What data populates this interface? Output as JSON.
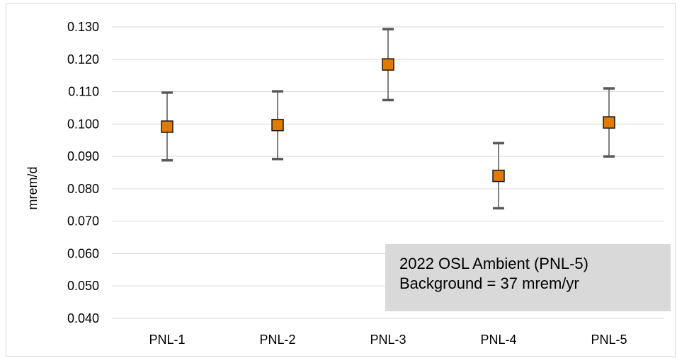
{
  "chart_data": {
    "type": "scatter",
    "ylabel": "mrem/d",
    "xlabel": "",
    "ylim": [
      0.04,
      0.13
    ],
    "y_ticks": [
      "0.040",
      "0.050",
      "0.060",
      "0.070",
      "0.080",
      "0.090",
      "0.100",
      "0.110",
      "0.120",
      "0.130"
    ],
    "grid": true,
    "categories": [
      "PNL-1",
      "PNL-2",
      "PNL-3",
      "PNL-4",
      "PNL-5"
    ],
    "values": [
      0.0992,
      0.0997,
      0.1184,
      0.084,
      0.1005
    ],
    "error_low": [
      0.0888,
      0.0892,
      0.1074,
      0.074,
      0.09
    ],
    "error_high": [
      0.1097,
      0.1101,
      0.1293,
      0.0941,
      0.111
    ],
    "marker": "square",
    "colors": {
      "marker_fill": "#e07b00",
      "marker_edge": "#1a1a1a",
      "error_bar": "#7f7f7f",
      "error_cap": "#595959",
      "grid": "#d9d9d9",
      "annotation_bg": "#d9d9d9"
    },
    "annotation": {
      "line1": "2022 OSL Ambient (PNL-5)",
      "line2": "Background = 37 mrem/yr"
    }
  }
}
